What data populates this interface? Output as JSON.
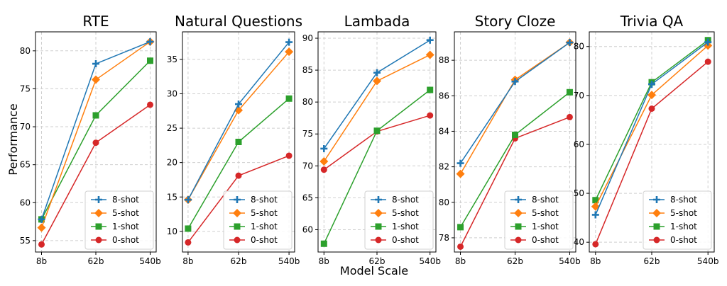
{
  "figure": {
    "ylabel": "Performance",
    "xlabel": "Model Scale"
  },
  "colors": {
    "8-shot": "#1f77b4",
    "5-shot": "#ff7f0e",
    "1-shot": "#2ca02c",
    "0-shot": "#d62728"
  },
  "markers": {
    "8-shot": "plus",
    "5-shot": "diamond",
    "1-shot": "square",
    "0-shot": "circle"
  },
  "chart_data": [
    {
      "type": "line",
      "title": "RTE",
      "categories": [
        "8b",
        "62b",
        "540b"
      ],
      "ylim": [
        53.5,
        82.5
      ],
      "yticks": [
        55,
        60,
        65,
        70,
        75,
        80
      ],
      "legend_position": "lower-right",
      "grid": true,
      "series": [
        {
          "name": "8-shot",
          "values": [
            57.8,
            78.3,
            81.2
          ]
        },
        {
          "name": "5-shot",
          "values": [
            56.7,
            76.2,
            81.2
          ]
        },
        {
          "name": "1-shot",
          "values": [
            57.8,
            71.5,
            78.7
          ]
        },
        {
          "name": "0-shot",
          "values": [
            54.5,
            67.9,
            72.9
          ]
        }
      ]
    },
    {
      "type": "line",
      "title": "Natural Questions",
      "categories": [
        "8b",
        "62b",
        "540b"
      ],
      "ylim": [
        7.0,
        39.0
      ],
      "yticks": [
        10,
        15,
        20,
        25,
        30,
        35
      ],
      "legend_position": "lower-right",
      "grid": true,
      "series": [
        {
          "name": "8-shot",
          "values": [
            14.6,
            28.5,
            37.5
          ]
        },
        {
          "name": "5-shot",
          "values": [
            14.6,
            27.6,
            36.1
          ]
        },
        {
          "name": "1-shot",
          "values": [
            10.4,
            23.0,
            29.3
          ]
        },
        {
          "name": "0-shot",
          "values": [
            8.4,
            18.1,
            21.0
          ]
        }
      ]
    },
    {
      "type": "line",
      "title": "Lambada",
      "categories": [
        "8b",
        "62b",
        "540b"
      ],
      "ylim": [
        56.5,
        91.0
      ],
      "yticks": [
        60,
        65,
        70,
        75,
        80,
        85,
        90
      ],
      "legend_position": "lower-right",
      "grid": true,
      "series": [
        {
          "name": "8-shot",
          "values": [
            72.7,
            84.6,
            89.7
          ]
        },
        {
          "name": "5-shot",
          "values": [
            70.7,
            83.3,
            87.4
          ]
        },
        {
          "name": "1-shot",
          "values": [
            57.8,
            75.5,
            81.9
          ]
        },
        {
          "name": "0-shot",
          "values": [
            69.4,
            75.4,
            77.9
          ]
        }
      ]
    },
    {
      "type": "line",
      "title": "Story Cloze",
      "categories": [
        "8b",
        "62b",
        "540b"
      ],
      "ylim": [
        77.2,
        89.6
      ],
      "yticks": [
        78,
        80,
        82,
        84,
        86,
        88
      ],
      "legend_position": "lower-right",
      "grid": true,
      "series": [
        {
          "name": "8-shot",
          "values": [
            82.2,
            86.8,
            89.0
          ]
        },
        {
          "name": "5-shot",
          "values": [
            81.6,
            86.9,
            89.0
          ]
        },
        {
          "name": "1-shot",
          "values": [
            78.6,
            83.8,
            86.2
          ]
        },
        {
          "name": "0-shot",
          "values": [
            77.5,
            83.6,
            84.8
          ]
        }
      ]
    },
    {
      "type": "line",
      "title": "Trivia QA",
      "categories": [
        "8b",
        "62b",
        "540b"
      ],
      "ylim": [
        38.0,
        83.0
      ],
      "yticks": [
        40,
        50,
        60,
        70,
        80
      ],
      "legend_position": "lower-right",
      "grid": true,
      "series": [
        {
          "name": "8-shot",
          "values": [
            45.6,
            72.3,
            80.9
          ]
        },
        {
          "name": "5-shot",
          "values": [
            47.3,
            70.1,
            80.2
          ]
        },
        {
          "name": "1-shot",
          "values": [
            48.6,
            72.7,
            81.3
          ]
        },
        {
          "name": "0-shot",
          "values": [
            39.6,
            67.3,
            76.9
          ]
        }
      ]
    }
  ]
}
